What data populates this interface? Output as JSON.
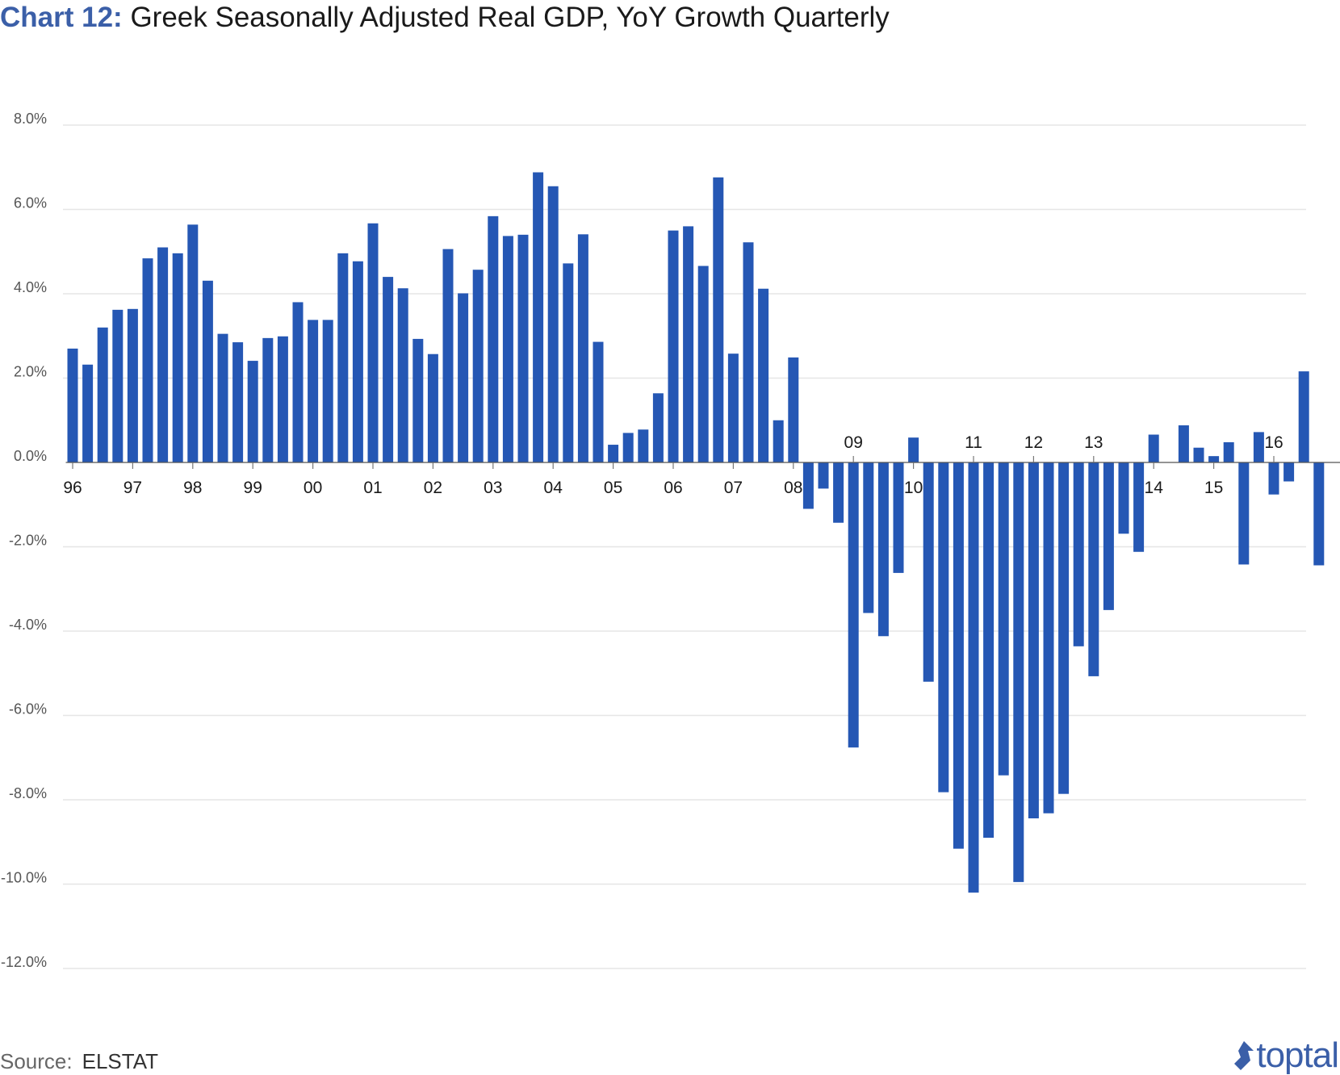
{
  "header": {
    "title_prefix": "Chart 12:",
    "title_text": "Greek Seasonally Adjusted Real GDP, YoY Growth Quarterly"
  },
  "footer": {
    "source_label": "Source:",
    "source_value": "ELSTAT",
    "brand_name": "toptal"
  },
  "colors": {
    "bar": "#2557b4",
    "title_accent": "#3b5fa8",
    "gridline": "#e6e6e6",
    "brand": "#3b5fa8"
  },
  "chart_data": {
    "type": "bar",
    "title": "Greek Seasonally Adjusted Real GDP, YoY Growth Quarterly",
    "xlabel": "",
    "ylabel": "",
    "ylim": [
      -12.0,
      8.0
    ],
    "y_ticks": [
      "8.0%",
      "6.0%",
      "4.0%",
      "2.0%",
      "0.0%",
      "-2.0%",
      "-4.0%",
      "-6.0%",
      "-8.0%",
      "-10.0%",
      "-12.0%"
    ],
    "y_tick_values": [
      8,
      6,
      4,
      2,
      0,
      -2,
      -4,
      -6,
      -8,
      -10,
      -12
    ],
    "grid": true,
    "year_labels": [
      "96",
      "97",
      "98",
      "99",
      "00",
      "01",
      "02",
      "03",
      "04",
      "05",
      "06",
      "07",
      "08",
      "09",
      "10",
      "11",
      "12",
      "13",
      "14",
      "15",
      "16"
    ],
    "year_label_bar_index": [
      0,
      4,
      8,
      12,
      16,
      20,
      24,
      28,
      32,
      36,
      40,
      44,
      48,
      52,
      56,
      60,
      64,
      68,
      72,
      76,
      80
    ],
    "values": [
      2.7,
      2.32,
      3.2,
      3.62,
      3.64,
      4.84,
      5.1,
      4.96,
      5.64,
      4.31,
      3.05,
      2.85,
      2.41,
      2.95,
      2.99,
      3.8,
      3.38,
      3.38,
      4.96,
      4.77,
      5.67,
      4.4,
      4.13,
      2.93,
      2.57,
      5.06,
      4.01,
      4.57,
      5.84,
      5.37,
      5.4,
      6.88,
      6.55,
      4.72,
      5.41,
      2.86,
      0.42,
      0.7,
      0.78,
      1.64,
      5.5,
      5.6,
      4.66,
      6.76,
      2.58,
      5.22,
      4.12,
      1.0,
      2.49,
      -1.1,
      -0.62,
      -1.43,
      -6.76,
      -3.57,
      -4.12,
      -2.62,
      0.59,
      -5.2,
      -7.82,
      -9.16,
      -10.2,
      -8.9,
      -7.42,
      -9.95,
      -8.44,
      -8.32,
      -7.86,
      -4.36,
      -5.07,
      -3.5,
      -1.69,
      -2.12,
      0.66,
      0.0,
      0.88,
      0.35,
      0.15,
      0.48,
      -2.42,
      0.72,
      -0.76,
      -0.45,
      2.16,
      -2.44
    ]
  }
}
